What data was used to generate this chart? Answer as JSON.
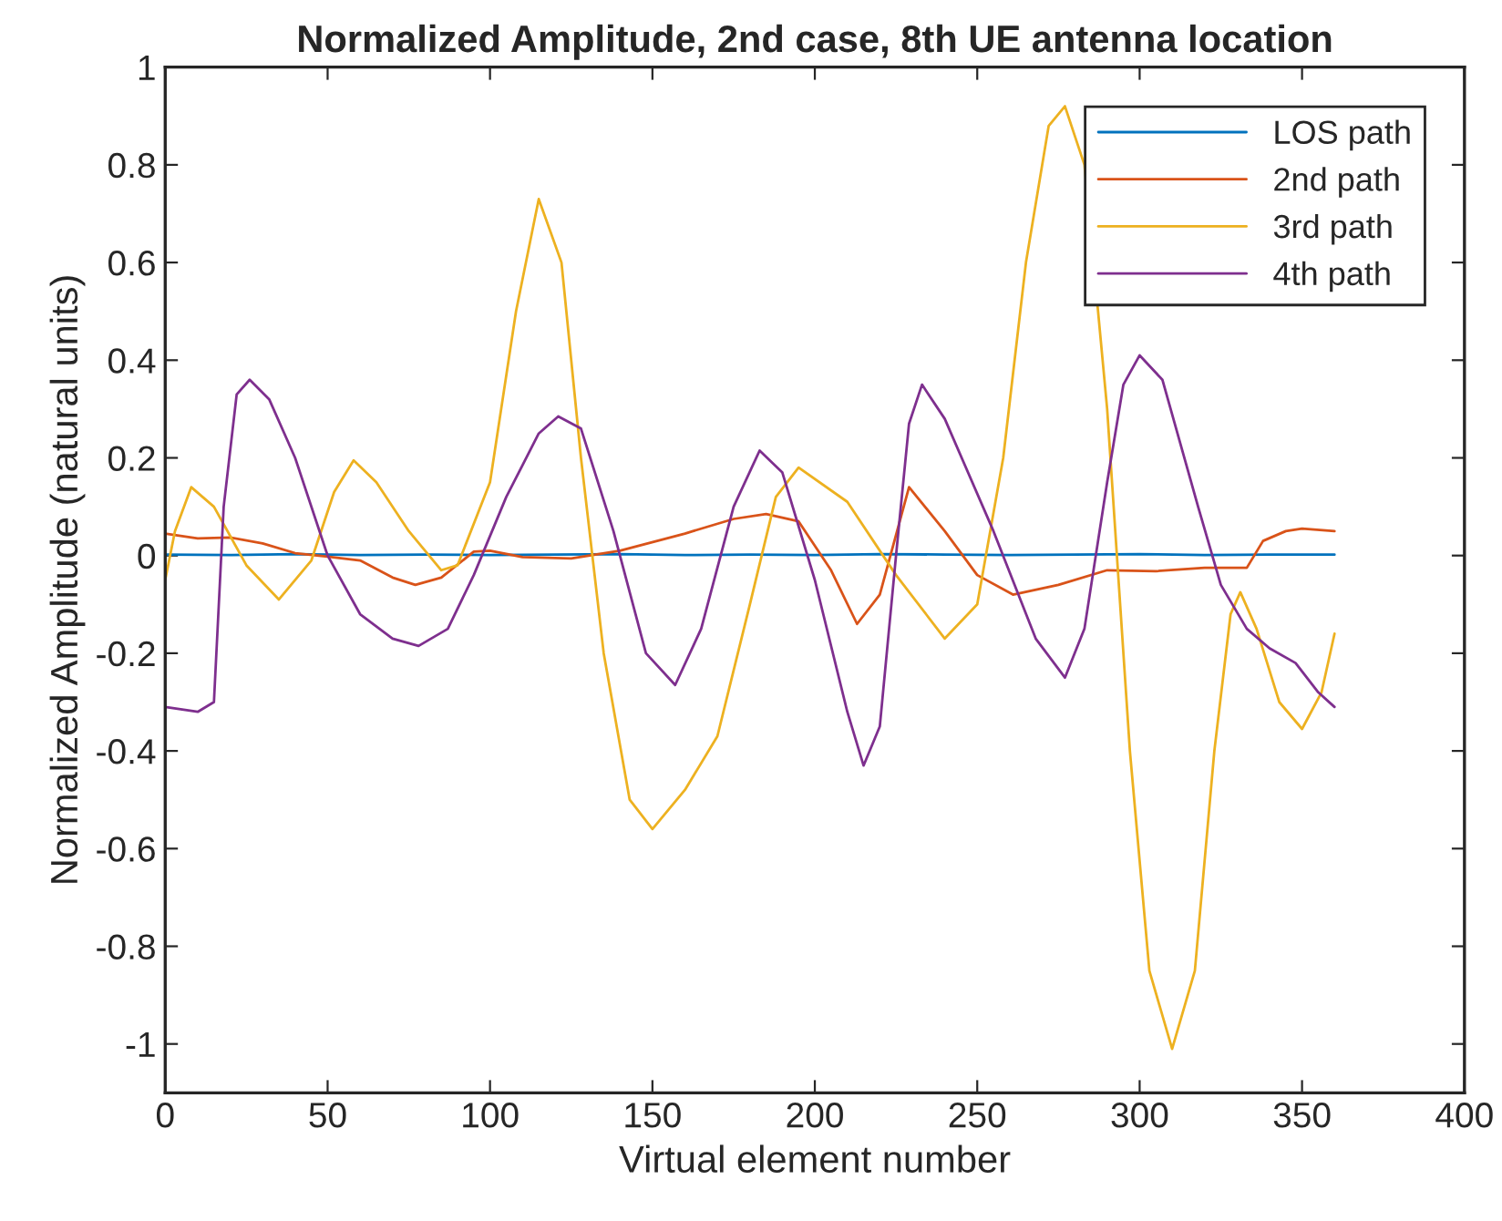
{
  "chart_data": {
    "type": "line",
    "title": "Normalized Amplitude, 2nd case, 8th UE antenna location",
    "xlabel": "Virtual element number",
    "ylabel": "Normalized Amplitude (natural units)",
    "xlim": [
      0,
      400
    ],
    "xticks": [
      0,
      50,
      100,
      150,
      200,
      250,
      300,
      350,
      400
    ],
    "ylim": [
      -1.1,
      1
    ],
    "yticks": [
      -1,
      -0.8,
      -0.6,
      -0.4,
      -0.2,
      0,
      0.2,
      0.4,
      0.6,
      0.8,
      1
    ],
    "grid": false,
    "legend": "top right",
    "marker": "none",
    "line_style": "solid",
    "series": [
      {
        "name": "LOS path",
        "color": "#0072bd",
        "x": [
          0,
          20,
          40,
          60,
          80,
          100,
          120,
          140,
          160,
          180,
          200,
          220,
          240,
          260,
          280,
          300,
          320,
          340,
          360
        ],
        "values": [
          0.002,
          0.001,
          0.003,
          0.001,
          0.002,
          0.001,
          0.002,
          0.003,
          0.001,
          0.002,
          0.001,
          0.003,
          0.002,
          0.001,
          0.002,
          0.003,
          0.001,
          0.002,
          0.002
        ]
      },
      {
        "name": "2nd path",
        "color": "#d95319",
        "x": [
          0,
          10,
          20,
          30,
          40,
          50,
          60,
          70,
          77,
          85,
          95,
          100,
          110,
          125,
          140,
          160,
          175,
          185,
          195,
          205,
          213,
          220,
          229,
          240,
          250,
          261,
          275,
          290,
          305,
          320,
          333,
          338,
          345,
          350,
          360
        ],
        "values": [
          0.045,
          0.035,
          0.037,
          0.025,
          0.005,
          -0.002,
          -0.01,
          -0.045,
          -0.06,
          -0.045,
          0.008,
          0.01,
          -0.003,
          -0.006,
          0.01,
          0.045,
          0.075,
          0.085,
          0.07,
          -0.03,
          -0.14,
          -0.08,
          0.14,
          0.05,
          -0.04,
          -0.08,
          -0.06,
          -0.03,
          -0.032,
          -0.025,
          -0.025,
          0.03,
          0.05,
          0.055,
          0.05
        ]
      },
      {
        "name": "3rd path",
        "color": "#edb120",
        "x": [
          0,
          3,
          8,
          15,
          25,
          35,
          45,
          52,
          58,
          65,
          75,
          85,
          90,
          100,
          108,
          115,
          122,
          128,
          135,
          143,
          150,
          160,
          170,
          180,
          188,
          195,
          210,
          225,
          240,
          250,
          258,
          265,
          272,
          277,
          283,
          290,
          297,
          303,
          310,
          317,
          323,
          328,
          331,
          336,
          343,
          350,
          356,
          360
        ],
        "values": [
          -0.05,
          0.05,
          0.14,
          0.1,
          -0.02,
          -0.09,
          -0.01,
          0.13,
          0.195,
          0.15,
          0.05,
          -0.03,
          -0.02,
          0.15,
          0.5,
          0.73,
          0.6,
          0.2,
          -0.2,
          -0.5,
          -0.56,
          -0.48,
          -0.37,
          -0.1,
          0.12,
          0.18,
          0.11,
          -0.04,
          -0.17,
          -0.1,
          0.2,
          0.6,
          0.88,
          0.92,
          0.8,
          0.3,
          -0.4,
          -0.85,
          -1.01,
          -0.85,
          -0.4,
          -0.12,
          -0.075,
          -0.15,
          -0.3,
          -0.355,
          -0.28,
          -0.16
        ]
      },
      {
        "name": "4th path",
        "color": "#7e2f8e",
        "x": [
          0,
          10,
          15,
          18,
          22,
          26,
          32,
          40,
          50,
          60,
          70,
          78,
          87,
          95,
          105,
          115,
          121,
          128,
          138,
          148,
          157,
          165,
          175,
          183,
          190,
          200,
          210,
          215,
          220,
          225,
          229,
          233,
          240,
          255,
          268,
          277,
          283,
          290,
          295,
          300,
          307,
          318,
          325,
          333,
          340,
          348,
          355,
          360
        ],
        "values": [
          -0.31,
          -0.32,
          -0.3,
          0.1,
          0.33,
          0.36,
          0.32,
          0.2,
          0.0,
          -0.12,
          -0.17,
          -0.185,
          -0.15,
          -0.04,
          0.12,
          0.25,
          0.285,
          0.26,
          0.05,
          -0.2,
          -0.265,
          -0.15,
          0.1,
          0.215,
          0.17,
          -0.05,
          -0.32,
          -0.43,
          -0.35,
          0.0,
          0.27,
          0.35,
          0.28,
          0.05,
          -0.17,
          -0.25,
          -0.15,
          0.15,
          0.35,
          0.41,
          0.36,
          0.1,
          -0.06,
          -0.15,
          -0.19,
          -0.22,
          -0.28,
          -0.31
        ]
      }
    ]
  }
}
